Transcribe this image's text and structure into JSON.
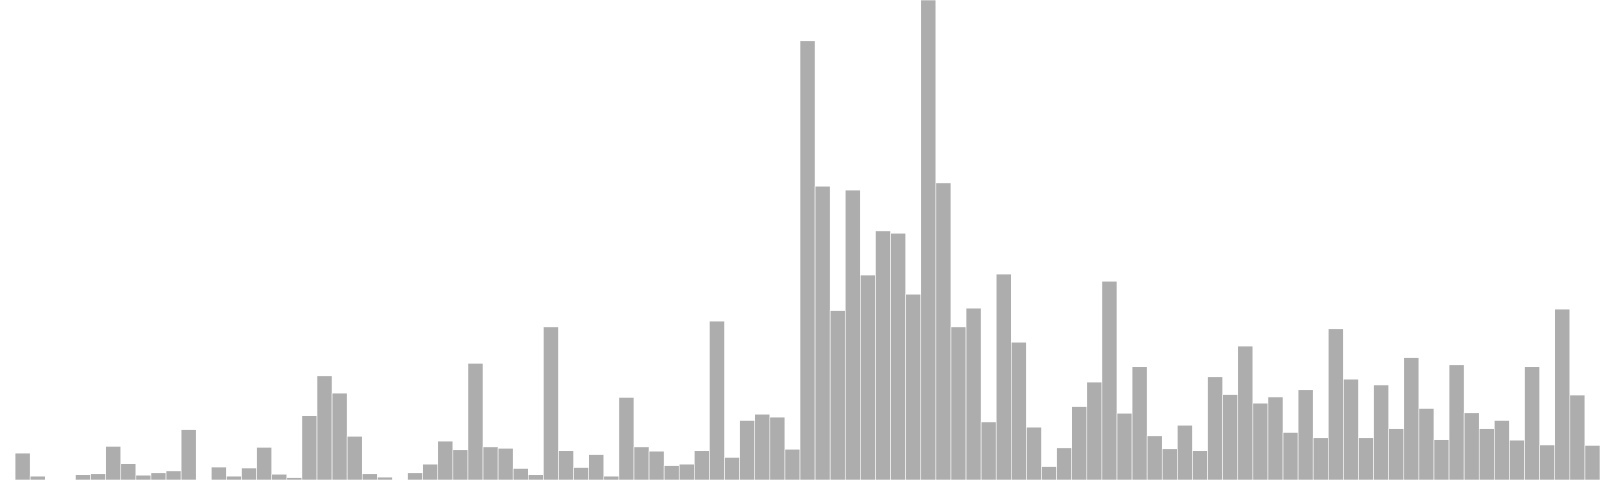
{
  "chart_data": {
    "type": "bar",
    "title": "",
    "xlabel": "",
    "ylabel": "",
    "ylim": [
      0,
      100
    ],
    "grid": false,
    "legend": "none",
    "bar_color": "#adadad",
    "edge_color": "#ffffff",
    "background": "#ffffff",
    "values": [
      0,
      5.6,
      0.8,
      0,
      0,
      1.1,
      1.3,
      7,
      3.4,
      1,
      1.5,
      1.9,
      10.5,
      0,
      2.7,
      0.8,
      2.5,
      6.8,
      1.2,
      0.5,
      13.4,
      21.7,
      18.1,
      9.1,
      1.3,
      0.6,
      0,
      1.5,
      3.3,
      8.1,
      6.3,
      24.3,
      6.9,
      6.6,
      2.4,
      1.1,
      31.9,
      6.1,
      2.6,
      5.3,
      0.8,
      17.2,
      6.9,
      6,
      3,
      3.3,
      6.1,
      33.1,
      4.7,
      12.4,
      13.7,
      13.1,
      6.4,
      91.5,
      61.2,
      35.3,
      60.4,
      42.7,
      51.9,
      51.4,
      38.7,
      100,
      61.9,
      31.9,
      35.8,
      12.1,
      42.9,
      28.7,
      11,
      2.8,
      6.7,
      15.3,
      20.4,
      41.4,
      13.9,
      23.6,
      9.2,
      6.5,
      11.4,
      6.1,
      21.5,
      17.8,
      27.9,
      16,
      17.3,
      9.9,
      18.8,
      8.8,
      31.5,
      21,
      8.8,
      19.8,
      10.7,
      25.5,
      14.9,
      8.4,
      24,
      14,
      10.7,
      12.4,
      8.3,
      23.6,
      7.3,
      35.6,
      17.7,
      7.2
    ]
  }
}
